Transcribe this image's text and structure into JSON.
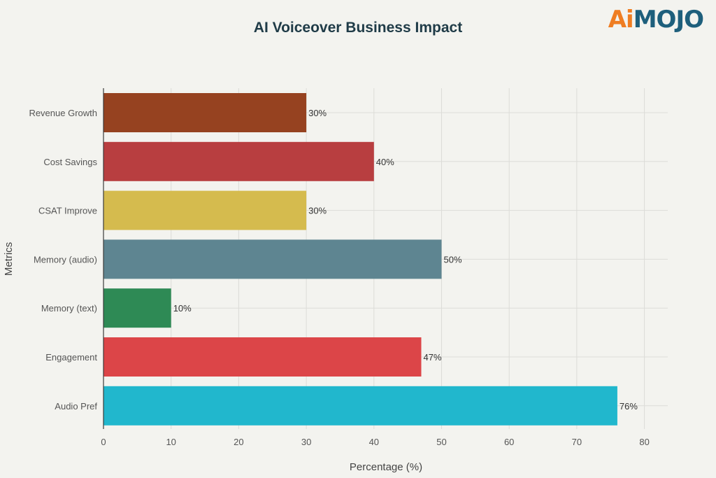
{
  "logo": {
    "ai": "Ai",
    "rest": "MOJO"
  },
  "chart_data": {
    "type": "bar",
    "orientation": "horizontal",
    "title": "AI Voiceover Business Impact",
    "xlabel": "Percentage (%)",
    "ylabel": "Metrics",
    "xlim": [
      0,
      84
    ],
    "xticks": [
      0,
      10,
      20,
      30,
      40,
      50,
      60,
      70,
      80
    ],
    "grid": true,
    "categories": [
      "Revenue Growth",
      "Cost Savings",
      "CSAT Improve",
      "Memory (audio)",
      "Memory (text)",
      "Engagement",
      "Audio Pref"
    ],
    "values": [
      30,
      40,
      30,
      50,
      10,
      47,
      76
    ],
    "data_labels": [
      "30%",
      "40%",
      "30%",
      "50%",
      "10%",
      "47%",
      "76%"
    ],
    "colors": [
      "#964220",
      "#b83e40",
      "#d5bb4e",
      "#5e8591",
      "#2e8a55",
      "#dc4548",
      "#21b7cd"
    ]
  }
}
